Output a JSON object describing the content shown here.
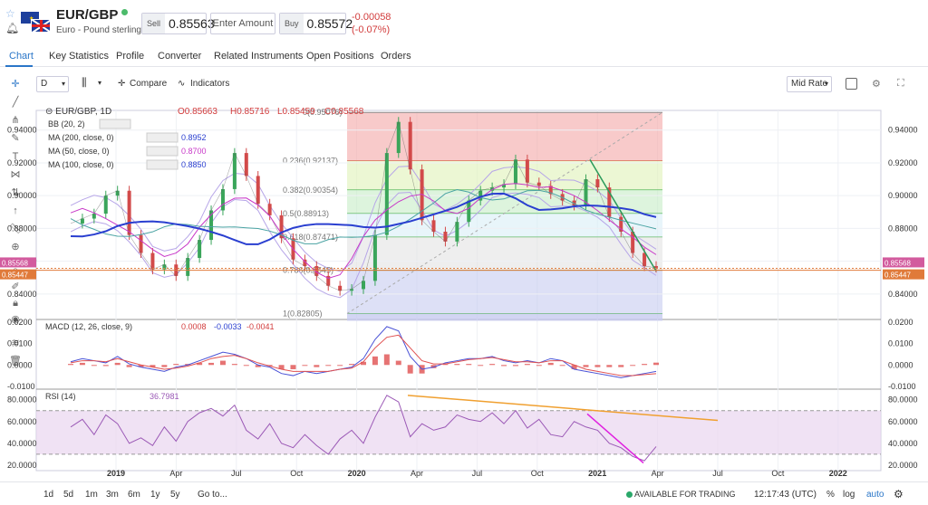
{
  "header": {
    "symbol": "EUR/GBP",
    "description": "Euro - Pound sterling",
    "sell_label": "Sell",
    "sell_price": "0.85563",
    "amount_placeholder": "Enter Amount",
    "buy_label": "Buy",
    "buy_price": "0.85572",
    "change": "-0.00058",
    "change_pct": "(-0.07%)"
  },
  "tabs": [
    "Chart",
    "Key Statistics",
    "Profile",
    "Converter",
    "Related Instruments",
    "Open Positions",
    "Orders"
  ],
  "toolbar": {
    "interval": "D",
    "compare": "Compare",
    "indicators": "Indicators",
    "price_type": "Mid Rate"
  },
  "footer": {
    "ranges": [
      "1d",
      "5d",
      "1m",
      "3m",
      "6m",
      "1y",
      "5y",
      "Go to..."
    ],
    "status": "AVAILABLE FOR TRADING",
    "time": "12:17:43 (UTC)",
    "pct": "%",
    "log": "log",
    "auto": "auto"
  },
  "chart_data": [
    {
      "type": "line",
      "pane": "price",
      "legend_title": "EUR/GBP, 1D",
      "ohlc": {
        "open": "O0.85663",
        "high": "H0.85716",
        "low": "L0.85459",
        "close": "C0.85568"
      },
      "indicators": [
        {
          "name": "BB (20, 2)",
          "value": "",
          "color": "#555555"
        },
        {
          "name": "MA (200, close, 0)",
          "value": "0.8952",
          "color": "#2a3fd0"
        },
        {
          "name": "MA (50, close, 0)",
          "value": "0.8700",
          "color": "#c838c8"
        },
        {
          "name": "MA (100, close, 0)",
          "value": "0.8850",
          "color": "#2a3fd0"
        }
      ],
      "x_ticks": [
        "2019",
        "Apr",
        "Jul",
        "Oct",
        "2020",
        "Apr",
        "Jul",
        "Oct",
        "2021",
        "Apr",
        "Jul",
        "Oct",
        "2022"
      ],
      "y_ticks": [
        "0.94000",
        "0.92000",
        "0.90000",
        "0.88000",
        "0.86000",
        "0.84000"
      ],
      "ylim": [
        0.825,
        0.952
      ],
      "last_price": "0.85568",
      "second_price": "0.85447",
      "fib_top_label": "0(0.95076)",
      "fib_levels": [
        {
          "label": "0.236(0.92137)",
          "value": 0.92137,
          "color": "#f4a7a7"
        },
        {
          "label": "0.382(0.90354)",
          "value": 0.90354,
          "color": "#dff2b8"
        },
        {
          "label": "0.5(0.88913)",
          "value": 0.88913,
          "color": "#c6ecc6"
        },
        {
          "label": "0.618(0.87471)",
          "value": 0.87471,
          "color": "#d9eef7"
        },
        {
          "label": "0.786(0.8545)",
          "value": 0.8545,
          "color": "#e3e3e3"
        },
        {
          "label": "1(0.82805)",
          "value": 0.82805,
          "color": "#c7cbf0"
        }
      ],
      "series": [
        {
          "values": [
            0.883,
            0.886,
            0.889,
            0.9,
            0.903,
            0.876,
            0.865,
            0.855,
            0.858,
            0.851,
            0.862,
            0.873,
            0.891,
            0.904,
            0.926,
            0.912,
            0.895,
            0.888,
            0.874,
            0.861,
            0.857,
            0.851,
            0.845,
            0.842,
            0.843,
            0.848,
            0.876,
            0.926,
            0.945,
            0.916,
            0.885,
            0.878,
            0.872,
            0.884,
            0.897,
            0.903,
            0.905,
            0.907,
            0.922,
            0.908,
            0.906,
            0.901,
            0.897,
            0.894,
            0.91,
            0.905,
            0.887,
            0.878,
            0.865,
            0.857,
            0.856
          ]
        }
      ]
    },
    {
      "type": "line",
      "pane": "macd",
      "legend_title": "MACD (12, 26, close, 9)",
      "values_text": [
        "0.0008",
        "-0.0033",
        "-0.0041"
      ],
      "y_ticks": [
        "0.0200",
        "0.0100",
        "0.0000",
        "-0.0100"
      ],
      "ylim": [
        -0.0105,
        0.0205
      ],
      "series": [
        {
          "values": [
            0.0015,
            0.003,
            0.002,
            0.001,
            0.004,
            0.0005,
            -0.001,
            -0.002,
            -0.003,
            -0.001,
            0.0,
            0.002,
            0.004,
            0.006,
            0.005,
            0.003,
            0.0,
            -0.001,
            -0.004,
            -0.005,
            -0.003,
            -0.004,
            -0.003,
            -0.002,
            -0.001,
            0.003,
            0.012,
            0.018,
            0.016,
            0.004,
            -0.002,
            -0.001,
            0.001,
            0.002,
            0.003,
            0.003,
            0.004,
            0.002,
            0.001,
            0.002,
            0.001,
            0.003,
            0.002,
            -0.002,
            -0.003,
            -0.004,
            -0.005,
            -0.006,
            -0.005,
            -0.004,
            -0.003
          ]
        },
        {
          "values": [
            0.001,
            0.002,
            0.002,
            0.0015,
            0.003,
            0.0015,
            0.0,
            -0.001,
            -0.002,
            -0.0015,
            -0.0005,
            0.001,
            0.003,
            0.004,
            0.0045,
            0.003,
            0.001,
            -0.0005,
            -0.002,
            -0.003,
            -0.003,
            -0.003,
            -0.003,
            -0.002,
            -0.0015,
            0.0015,
            0.008,
            0.013,
            0.014,
            0.008,
            0.002,
            0.0005,
            0.0005,
            0.0015,
            0.0025,
            0.003,
            0.0035,
            0.0025,
            0.0015,
            0.0015,
            0.001,
            0.002,
            0.002,
            0.0,
            -0.002,
            -0.003,
            -0.004,
            -0.005,
            -0.005,
            -0.0045,
            -0.0041
          ]
        }
      ]
    },
    {
      "type": "line",
      "pane": "rsi",
      "legend_title": "RSI (14)",
      "value_text": "36.7981",
      "y_ticks": [
        "80.0000",
        "60.0000",
        "40.0000",
        "20.0000"
      ],
      "ylim": [
        15,
        88
      ],
      "bands": [
        70,
        30
      ],
      "series": [
        {
          "values": [
            55,
            62,
            48,
            66,
            58,
            40,
            45,
            38,
            55,
            42,
            60,
            68,
            72,
            65,
            75,
            52,
            44,
            58,
            40,
            36,
            48,
            38,
            30,
            44,
            52,
            40,
            64,
            84,
            78,
            46,
            58,
            52,
            55,
            66,
            62,
            60,
            68,
            58,
            70,
            54,
            62,
            48,
            46,
            60,
            55,
            52,
            40,
            36,
            28,
            24,
            37
          ]
        }
      ]
    }
  ]
}
